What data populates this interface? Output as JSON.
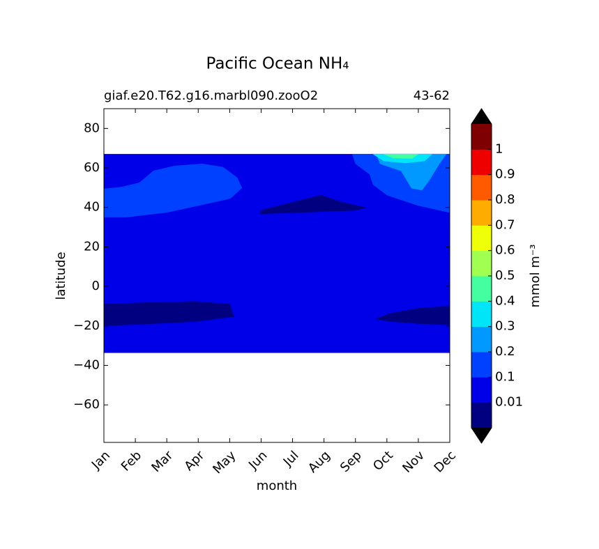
{
  "chart_data": {
    "type": "contour",
    "title": "Pacific Ocean NH₄",
    "subtitle_left": "giaf.e20.T62.g16.marbl090.zooO2",
    "subtitle_right": "43-62",
    "xlabel": "month",
    "ylabel": "latitude",
    "categories": [
      "Jan",
      "Feb",
      "Mar",
      "Apr",
      "May",
      "Jun",
      "Jul",
      "Aug",
      "Sep",
      "Oct",
      "Nov",
      "Dec"
    ],
    "ylim": [
      -79,
      90
    ],
    "yticks": [
      {
        "value": -60,
        "label": "−60"
      },
      {
        "value": -40,
        "label": "−40"
      },
      {
        "value": -20,
        "label": "−20"
      },
      0,
      20,
      40,
      60,
      80
    ],
    "colorbar_label": "mmol m⁻³",
    "levels": [
      0.01,
      0.1,
      0.2,
      0.3,
      0.4,
      0.5,
      0.6,
      0.7,
      0.8,
      0.9,
      1
    ],
    "colors": [
      "#000080",
      "#0000e8",
      "#0040ff",
      "#0099ff",
      "#00e5f8",
      "#44ffa0",
      "#a0ff50",
      "#eeff08",
      "#ffac00",
      "#ff5a00",
      "#ee0000",
      "#7f0000"
    ],
    "under_color": "#000000",
    "over_color": "#000000",
    "regions": [
      {
        "level": 1,
        "points": [
          [
            0,
            -33.6
          ],
          [
            11,
            -33.6
          ],
          [
            11,
            67
          ],
          [
            0,
            67
          ]
        ]
      },
      {
        "level": 2,
        "points": [
          [
            0,
            49.4
          ],
          [
            0.58,
            50.4
          ],
          [
            1.13,
            52.5
          ],
          [
            1.57,
            58.5
          ],
          [
            2.24,
            61.0
          ],
          [
            3.13,
            62.1
          ],
          [
            3.79,
            60.4
          ],
          [
            4.24,
            55.1
          ],
          [
            4.39,
            49.8
          ],
          [
            4.02,
            44.5
          ],
          [
            3.35,
            42.1
          ],
          [
            2.02,
            37.5
          ],
          [
            0.69,
            35.0
          ],
          [
            0,
            35.0
          ]
        ]
      },
      {
        "level": 2,
        "points": [
          [
            7.9,
            67
          ],
          [
            8.0,
            62.1
          ],
          [
            8.45,
            56.8
          ],
          [
            8.56,
            51.5
          ],
          [
            9.0,
            46.2
          ],
          [
            10.0,
            40.9
          ],
          [
            11,
            37.4
          ],
          [
            11,
            67
          ]
        ]
      },
      {
        "level": 3,
        "points": [
          [
            8.67,
            67
          ],
          [
            8.78,
            62.1
          ],
          [
            9.45,
            58.5
          ],
          [
            9.78,
            49.8
          ],
          [
            10.11,
            48.7
          ],
          [
            10.33,
            53.3
          ],
          [
            10.67,
            62.1
          ],
          [
            10.89,
            67
          ]
        ]
      },
      {
        "level": 4,
        "points": [
          [
            8.56,
            67
          ],
          [
            8.9,
            63.5
          ],
          [
            9.6,
            62.5
          ],
          [
            10.2,
            63.5
          ],
          [
            10.44,
            67
          ]
        ]
      },
      {
        "level": 5,
        "points": [
          [
            8.9,
            67
          ],
          [
            9.2,
            65
          ],
          [
            9.8,
            64.8
          ],
          [
            10.0,
            67
          ]
        ]
      },
      {
        "level": 0,
        "points": [
          [
            4.97,
            36.7
          ],
          [
            4.97,
            38.5
          ],
          [
            6.01,
            42.7
          ],
          [
            6.9,
            46.2
          ],
          [
            7.56,
            42.7
          ],
          [
            8.34,
            39.9
          ],
          [
            8.0,
            38.5
          ]
        ]
      },
      {
        "level": 0,
        "points": [
          [
            0,
            -9
          ],
          [
            1.13,
            -8.3
          ],
          [
            2.91,
            -7.6
          ],
          [
            4.01,
            -9
          ],
          [
            4.13,
            -15.3
          ],
          [
            2.91,
            -17.8
          ],
          [
            1.13,
            -19.2
          ],
          [
            0,
            -19.9
          ]
        ]
      },
      {
        "level": 0,
        "points": [
          [
            11,
            -10
          ],
          [
            10,
            -11.1
          ],
          [
            9.11,
            -13.6
          ],
          [
            8.63,
            -16.4
          ],
          [
            9.11,
            -17.8
          ],
          [
            10,
            -18.8
          ],
          [
            11,
            -19.5
          ]
        ]
      }
    ]
  }
}
